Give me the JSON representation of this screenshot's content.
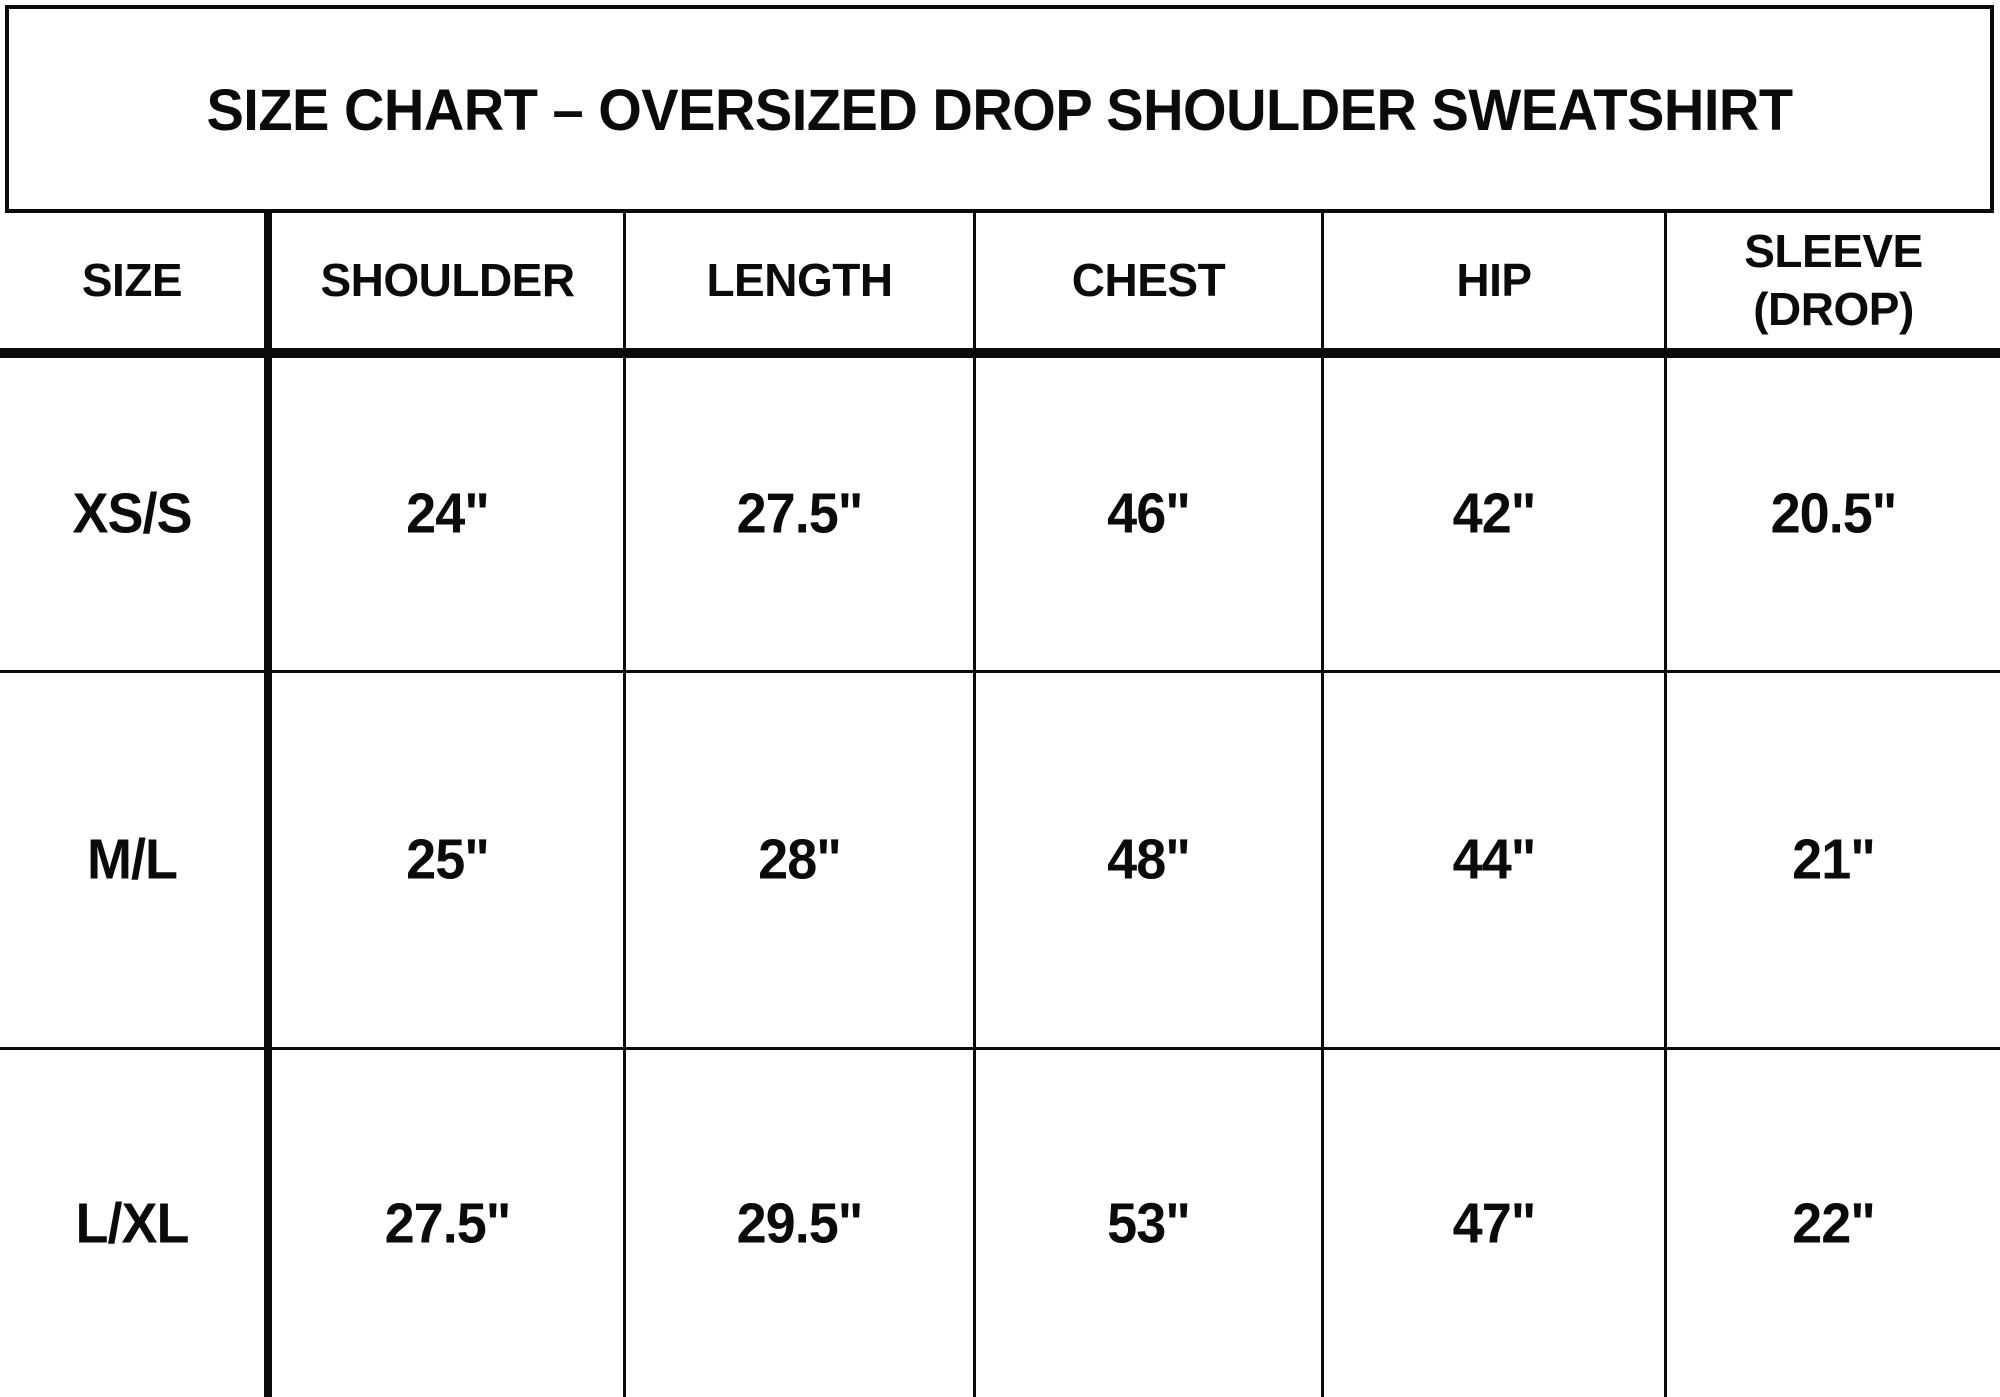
{
  "page": {
    "background": "#ffffff",
    "text_color": "#0b0b0b"
  },
  "title": "SIZE CHART – OVERSIZED DROP SHOULDER SWEATSHIRT",
  "table": {
    "columns": {
      "size": "SIZE",
      "shoulder": "SHOULDER",
      "length": "LENGTH",
      "chest": "CHEST",
      "hip": "HIP",
      "sleeve": "SLEEVE (DROP)"
    },
    "rows": [
      {
        "size": "XS/S",
        "shoulder": "24\"",
        "length": "27.5\"",
        "chest": "46\"",
        "hip": "42\"",
        "sleeve": "20.5\""
      },
      {
        "size": "M/L",
        "shoulder": "25\"",
        "length": "28\"",
        "chest": "48\"",
        "hip": "44\"",
        "sleeve": "21\""
      },
      {
        "size": "L/XL",
        "shoulder": "27.5\"",
        "length": "29.5\"",
        "chest": "53\"",
        "hip": "47\"",
        "sleeve": "22\""
      }
    ]
  },
  "chart_data": {
    "type": "table",
    "title": "SIZE CHART – OVERSIZED DROP SHOULDER SWEATSHIRT",
    "columns": [
      "SIZE",
      "SHOULDER",
      "LENGTH",
      "CHEST",
      "HIP",
      "SLEEVE (DROP)"
    ],
    "rows": [
      [
        "XS/S",
        "24\"",
        "27.5\"",
        "46\"",
        "42\"",
        "20.5\""
      ],
      [
        "M/L",
        "25\"",
        "28\"",
        "48\"",
        "44\"",
        "21\""
      ],
      [
        "L/XL",
        "27.5\"",
        "29.5\"",
        "53\"",
        "47\"",
        "22\""
      ]
    ],
    "units": "inches"
  }
}
